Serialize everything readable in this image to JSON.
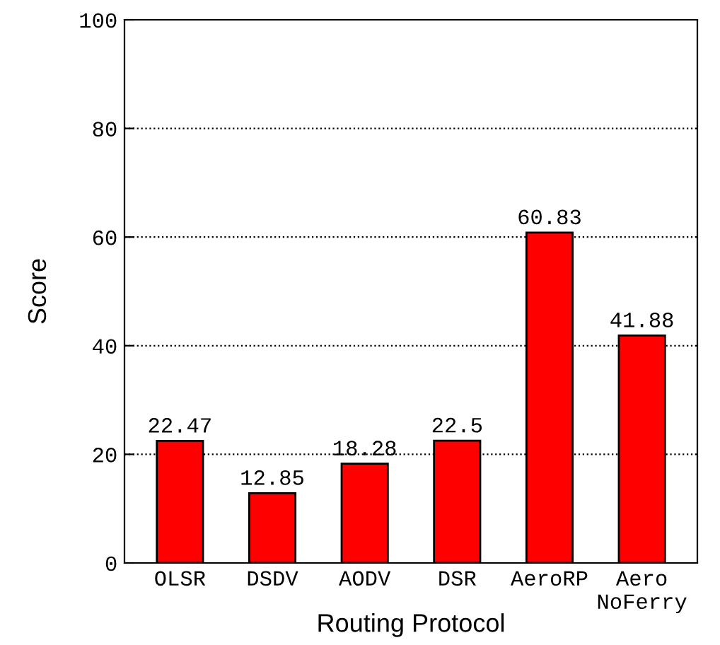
{
  "chart_data": {
    "type": "bar",
    "xlabel": "Routing Protocol",
    "ylabel": "Score",
    "categories": [
      "OLSR",
      "DSDV",
      "AODV",
      "DSR",
      "AeroRP",
      "Aero\nNoFerry"
    ],
    "values": [
      22.47,
      12.85,
      18.28,
      22.5,
      60.83,
      41.88
    ],
    "color": "#ff0000",
    "ylim": [
      0,
      100
    ],
    "yticks": [
      0,
      20,
      40,
      60,
      80,
      100
    ],
    "grid": "y",
    "data_labels": true
  }
}
